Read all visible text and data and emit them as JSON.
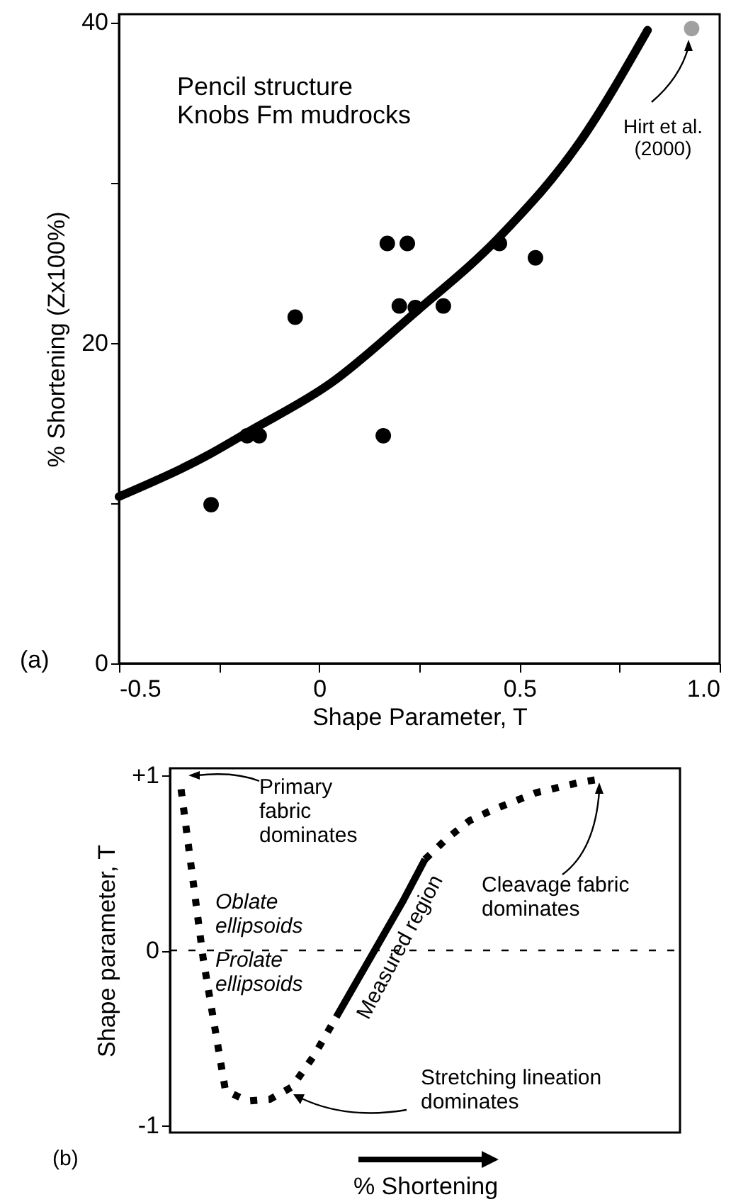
{
  "chart_data": [
    {
      "type": "scatter",
      "xlabel": "Shape Parameter, T",
      "ylabel": "% Shortening (Zx100%)",
      "xlim": [
        -0.5,
        1.0
      ],
      "ylim": [
        0,
        40.5
      ],
      "xticks": [
        -0.5,
        {
          "value": -0.25,
          "label": null
        },
        0,
        {
          "value": 0.25,
          "label": null
        },
        0.5,
        {
          "value": 0.75,
          "label": null
        },
        {
          "value": 1,
          "label": "1.0"
        }
      ],
      "yticks": [
        0,
        {
          "value": 10,
          "label": null
        },
        20,
        {
          "value": 30,
          "label": null
        },
        40
      ],
      "series": [
        {
          "type": "scatter",
          "marker": "circle",
          "color": "#000000",
          "x": [
            0.17,
            0.22,
            0.45,
            0.54,
            0.2,
            0.24,
            0.31,
            -0.06,
            -0.27,
            -0.18,
            -0.15,
            0.16
          ],
          "values": [
            26.2,
            26.2,
            26.2,
            25.3,
            22.3,
            22.2,
            22.3,
            21.6,
            9.9,
            14.2,
            14.2,
            14.2
          ]
        },
        {
          "type": "scatter",
          "marker": "circle",
          "color": "#a0a0a0",
          "x": [
            0.93
          ],
          "values": [
            39.6
          ]
        },
        {
          "type": "line",
          "color": "#000000",
          "x": [
            -0.5,
            -0.27,
            -0.18,
            0.03,
            0.24,
            0.45,
            0.65,
            0.82
          ],
          "values": [
            10.4,
            13.1,
            14.4,
            17.5,
            21.9,
            26.6,
            32.5,
            39.5
          ]
        }
      ],
      "annotations": [
        "Pencil structure\nKnobs Fm mudrocks",
        "Hirt et al.\n(2000)",
        "(a)"
      ]
    },
    {
      "type": "line",
      "xlabel": "% Shortening",
      "ylabel": "Shape parameter, T",
      "ylim": [
        -1.04,
        1.04
      ],
      "yticks": [
        {
          "value": 1,
          "label": "+1"
        },
        0,
        -1
      ],
      "tick_labels": "y",
      "categories": [
        null,
        null,
        null,
        null,
        null,
        null,
        null,
        null,
        null,
        null,
        null,
        null,
        null,
        null,
        null,
        null,
        null,
        null,
        null,
        null,
        null,
        null,
        null
      ],
      "series": [
        {
          "color": "#000000",
          "line_style": "dotted",
          "values": [
            0.92,
            -0.05,
            -0.8,
            -0.86,
            -0.85,
            -0.78,
            -0.6,
            -0.38,
            null,
            null,
            null,
            null,
            null,
            null,
            null,
            null,
            null,
            null,
            null,
            null,
            null,
            null,
            null
          ]
        },
        {
          "color": "#000000",
          "line_style": "solid",
          "values": [
            null,
            null,
            null,
            null,
            null,
            null,
            null,
            -0.38,
            -0.16,
            0.06,
            0.28,
            0.52,
            null,
            null,
            null,
            null,
            null,
            null,
            null,
            null,
            null,
            null,
            null
          ]
        },
        {
          "color": "#000000",
          "line_style": "dotted",
          "values": [
            null,
            null,
            null,
            null,
            null,
            null,
            null,
            null,
            null,
            null,
            null,
            0.52,
            0.64,
            0.74,
            0.8,
            0.85,
            0.9,
            0.93,
            0.96,
            0.98,
            null,
            null,
            null
          ]
        }
      ],
      "ref_lines": [
        {
          "axis": "y",
          "value": 0,
          "line_style": "dotted",
          "color": "#000000"
        }
      ],
      "annotations": [
        "Primary\nfabric\ndominates",
        "Oblate\nellipsoids",
        "Prolate\nellipsoids",
        "Measured region",
        "Cleavage fabric\ndominates",
        "Stretching lineation\ndominates",
        "(b)"
      ]
    }
  ]
}
